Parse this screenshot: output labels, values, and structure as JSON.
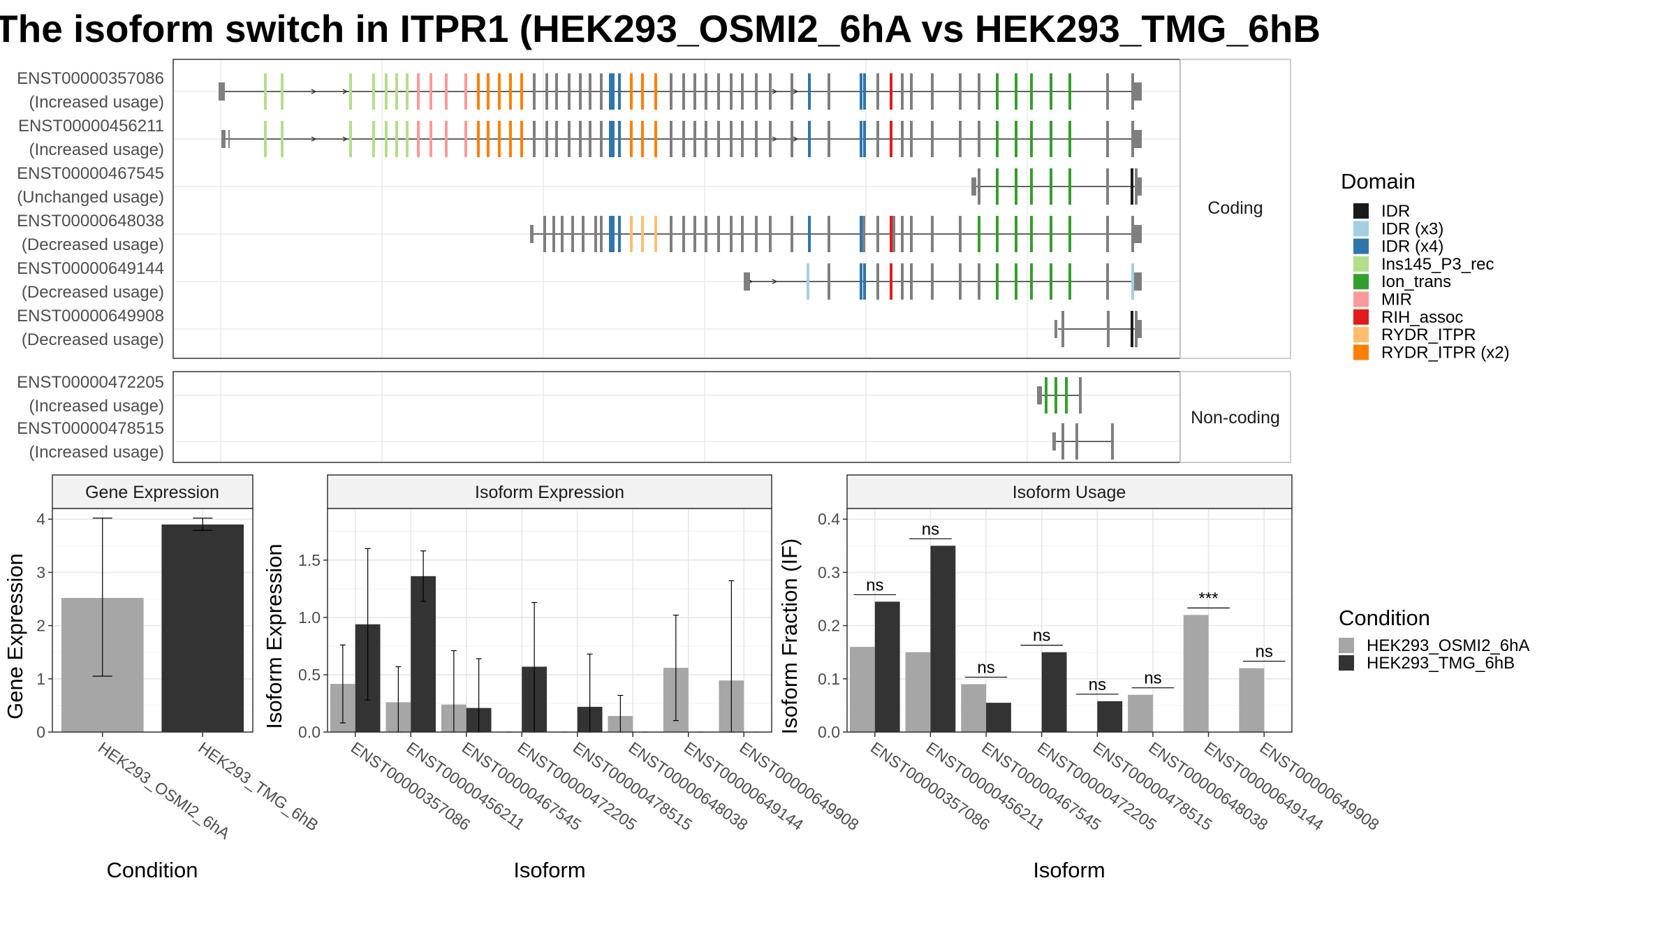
{
  "title": "The isoform switch in ITPR1 (HEK293_OSMI2_6hA vs HEK293_TMG_6hB",
  "colors": {
    "IDR": "#1a1a1a",
    "IDR (x3)": "#a6cee3",
    "IDR (x4)": "#2f76ad",
    "Ins145_P3_rec": "#b2df8a",
    "Ion_trans": "#33a02c",
    "MIR": "#fb9a99",
    "RIH_assoc": "#e31a1c",
    "RYDR_ITPR": "#fdbf6f",
    "RYDR_ITPR (x2)": "#ff7f00",
    "none": "#7f7f7f",
    "cond1": "#a6a6a6",
    "cond2": "#333333"
  },
  "structure": {
    "coding_strip": "Coding",
    "noncoding_strip": "Non-coding",
    "domain_legend_title": "Domain",
    "domain_legend": [
      "IDR",
      "IDR (x3)",
      "IDR (x4)",
      "Ins145_P3_rec",
      "Ion_trans",
      "MIR",
      "RIH_assoc",
      "RYDR_ITPR",
      "RYDR_ITPR (x2)"
    ],
    "coding": [
      {
        "id": "ENST00000357086",
        "usage": "(Increased usage)"
      },
      {
        "id": "ENST00000456211",
        "usage": "(Increased usage)"
      },
      {
        "id": "ENST00000467545",
        "usage": "(Unchanged usage)"
      },
      {
        "id": "ENST00000648038",
        "usage": "(Decreased usage)"
      },
      {
        "id": "ENST00000649144",
        "usage": "(Decreased usage)"
      },
      {
        "id": "ENST00000649908",
        "usage": "(Decreased usage)"
      }
    ],
    "noncoding": [
      {
        "id": "ENST00000472205",
        "usage": "(Increased usage)"
      },
      {
        "id": "ENST00000478515",
        "usage": "(Increased usage)"
      }
    ]
  },
  "chart_data": [
    {
      "type": "bar",
      "title": "Gene Expression",
      "xlabel": "Condition",
      "ylabel": "Gene Expression",
      "categories": [
        "HEK293_OSMI2_6hA",
        "HEK293_TMG_6hB"
      ],
      "values": [
        2.52,
        3.9
      ],
      "error_low": [
        1.05,
        3.79
      ],
      "error_high": [
        4.02,
        4.02
      ],
      "ylim": [
        0,
        4.2
      ],
      "yticks": [
        0,
        1,
        2,
        3,
        4
      ]
    },
    {
      "type": "bar",
      "title": "Isoform Expression",
      "xlabel": "Isoform",
      "ylabel": "Isoform Expression",
      "categories": [
        "ENST00000357086",
        "ENST00000456211",
        "ENST00000467545",
        "ENST00000472205",
        "ENST00000478515",
        "ENST00000648038",
        "ENST00000649144",
        "ENST00000649908"
      ],
      "series": [
        {
          "name": "HEK293_OSMI2_6hA",
          "values": [
            0.42,
            0.26,
            0.24,
            0.0,
            0.0,
            0.14,
            0.56,
            0.45
          ],
          "error_low": [
            0.08,
            0.0,
            0.0,
            0.0,
            0.0,
            0.0,
            0.1,
            0.0
          ],
          "error_high": [
            0.76,
            0.57,
            0.71,
            0.0,
            0.0,
            0.32,
            1.02,
            1.32
          ]
        },
        {
          "name": "HEK293_TMG_6hB",
          "values": [
            0.94,
            1.36,
            0.21,
            0.57,
            0.22,
            0.0,
            0.0,
            0.0
          ],
          "error_low": [
            0.28,
            1.14,
            0.0,
            0.0,
            0.0,
            0.0,
            0.0,
            0.0
          ],
          "error_high": [
            1.6,
            1.58,
            0.64,
            1.13,
            0.68,
            0.0,
            0.0,
            0.0
          ]
        }
      ],
      "ylim": [
        0,
        1.95
      ],
      "yticks": [
        "0.0",
        "0.5",
        "1.0",
        "1.5"
      ]
    },
    {
      "type": "bar",
      "title": "Isoform Usage",
      "xlabel": "Isoform",
      "ylabel": "Isoform Fraction (IF)",
      "categories": [
        "ENST00000357086",
        "ENST00000456211",
        "ENST00000467545",
        "ENST00000472205",
        "ENST00000478515",
        "ENST00000648038",
        "ENST00000649144",
        "ENST00000649908"
      ],
      "series": [
        {
          "name": "HEK293_OSMI2_6hA",
          "values": [
            0.16,
            0.15,
            0.09,
            0.0,
            0.0,
            0.07,
            0.22,
            0.12
          ]
        },
        {
          "name": "HEK293_TMG_6hB",
          "values": [
            0.245,
            0.35,
            0.055,
            0.15,
            0.058,
            0.0,
            0.0,
            0.0
          ]
        }
      ],
      "significance": [
        "ns",
        "ns",
        "ns",
        "ns",
        "ns",
        "ns",
        "***",
        "ns"
      ],
      "ylim": [
        0,
        0.42
      ],
      "yticks": [
        "0.0",
        "0.1",
        "0.2",
        "0.3",
        "0.4"
      ]
    }
  ],
  "condition_legend": {
    "title": "Condition",
    "items": [
      "HEK293_OSMI2_6hA",
      "HEK293_TMG_6hB"
    ]
  }
}
